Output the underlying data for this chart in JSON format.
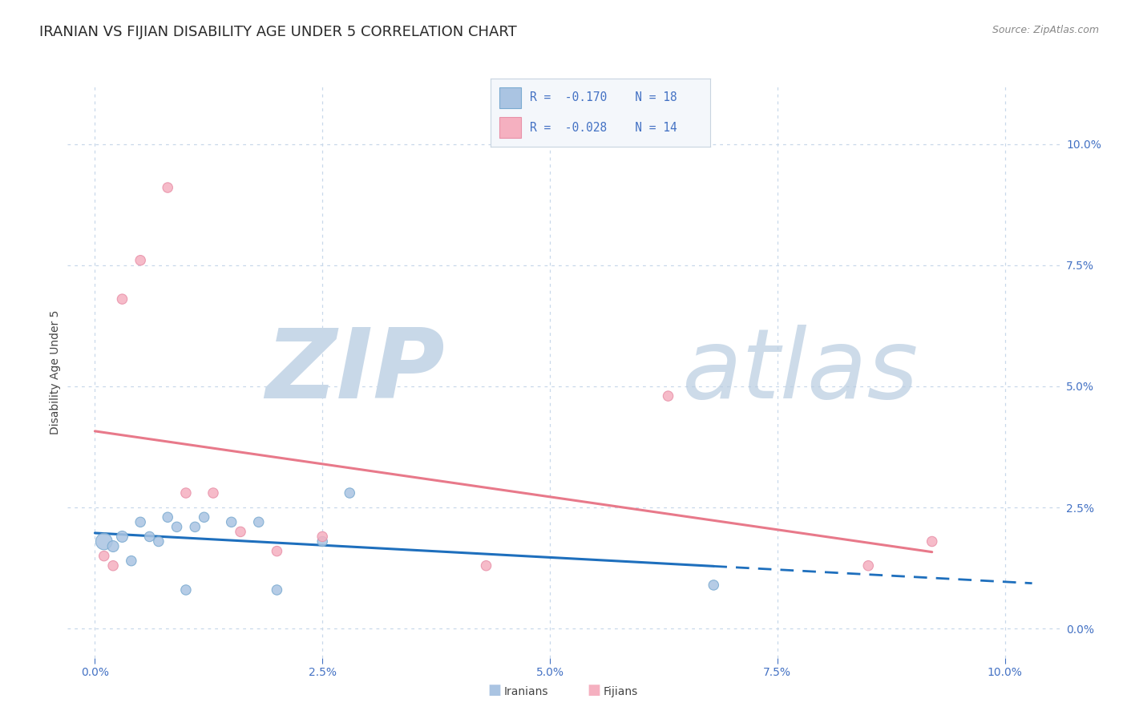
{
  "title": "IRANIAN VS FIJIAN DISABILITY AGE UNDER 5 CORRELATION CHART",
  "source": "Source: ZipAtlas.com",
  "xlabel_tick_vals": [
    0.0,
    0.025,
    0.05,
    0.075,
    0.1
  ],
  "ylabel": "Disability Age Under 5",
  "ylabel_tick_vals": [
    0.0,
    0.025,
    0.05,
    0.075,
    0.1
  ],
  "xlim": [
    -0.003,
    0.106
  ],
  "ylim": [
    -0.006,
    0.112
  ],
  "iranians_R": -0.17,
  "iranians_N": 18,
  "fijians_R": -0.028,
  "fijians_N": 14,
  "iranians_color": "#aac4e2",
  "iranians_edge_color": "#7aaad0",
  "fijians_color": "#f5b0c0",
  "fijians_edge_color": "#e890a8",
  "iranians_line_color": "#1e6fbd",
  "fijians_line_color": "#e8798a",
  "background_color": "#ffffff",
  "grid_color": "#c8d8ea",
  "watermark_color": "#dde8f2",
  "iranians_x": [
    0.001,
    0.002,
    0.003,
    0.004,
    0.005,
    0.006,
    0.007,
    0.008,
    0.009,
    0.01,
    0.011,
    0.012,
    0.015,
    0.018,
    0.02,
    0.025,
    0.028,
    0.068
  ],
  "iranians_y": [
    0.018,
    0.017,
    0.019,
    0.014,
    0.022,
    0.019,
    0.018,
    0.023,
    0.021,
    0.008,
    0.021,
    0.023,
    0.022,
    0.022,
    0.008,
    0.018,
    0.028,
    0.009
  ],
  "iranians_sizes": [
    220,
    100,
    100,
    80,
    80,
    80,
    80,
    80,
    80,
    80,
    80,
    80,
    80,
    80,
    80,
    80,
    80,
    80
  ],
  "fijians_x": [
    0.001,
    0.002,
    0.003,
    0.005,
    0.008,
    0.01,
    0.013,
    0.016,
    0.02,
    0.025,
    0.043,
    0.063,
    0.085,
    0.092
  ],
  "fijians_y": [
    0.015,
    0.013,
    0.068,
    0.076,
    0.091,
    0.028,
    0.028,
    0.02,
    0.016,
    0.019,
    0.013,
    0.048,
    0.013,
    0.018
  ],
  "fijians_sizes": [
    80,
    80,
    80,
    80,
    80,
    80,
    80,
    80,
    80,
    80,
    80,
    80,
    80,
    80
  ],
  "legend_text_color": "#4472c4",
  "title_fontsize": 13,
  "axis_label_fontsize": 10,
  "tick_fontsize": 10,
  "tick_color": "#4472c4"
}
